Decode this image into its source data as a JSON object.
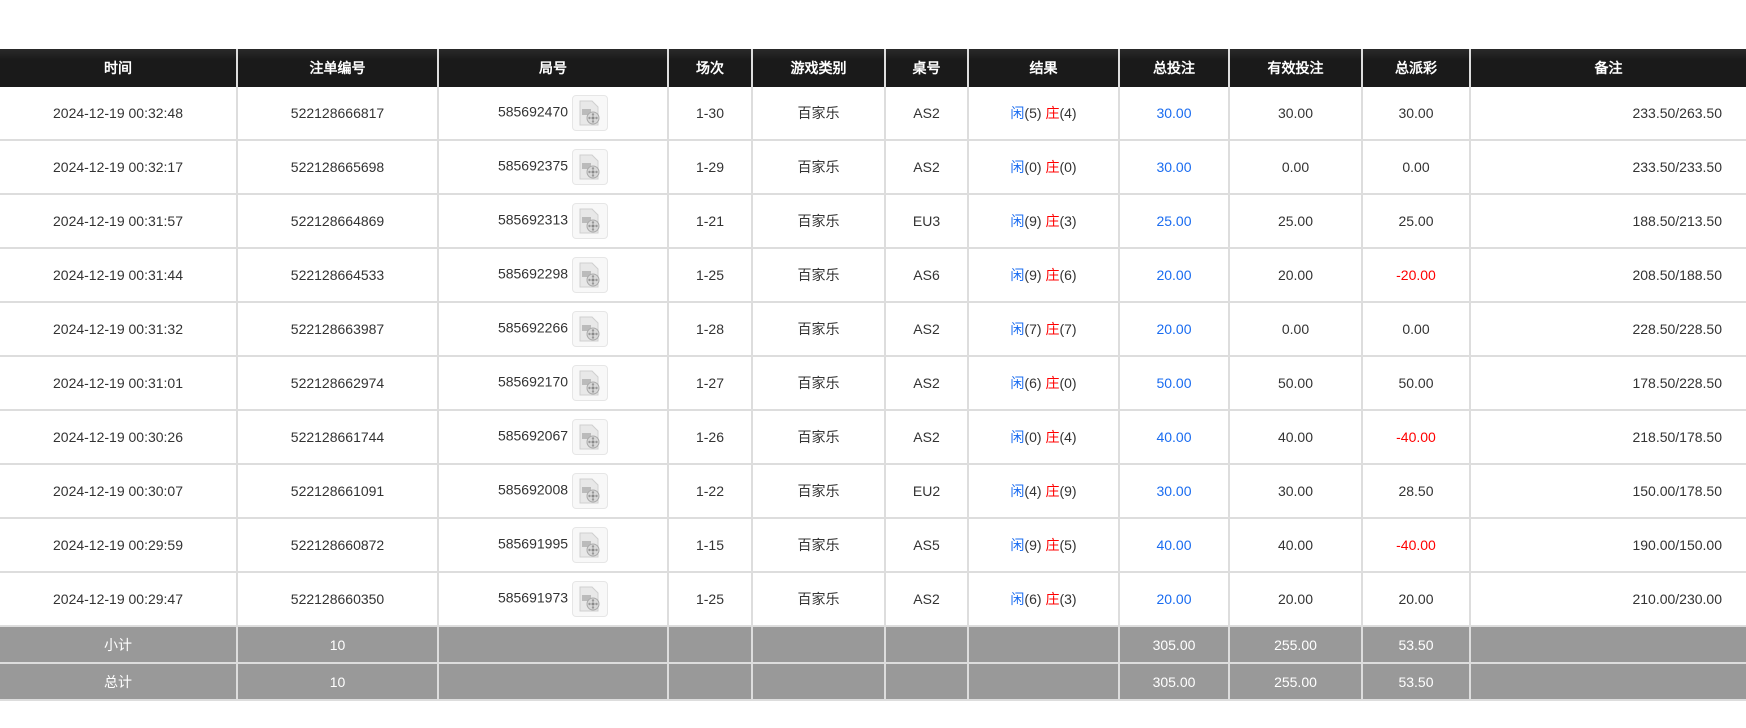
{
  "headers": [
    "时间",
    "注单编号",
    "局号",
    "场次",
    "游戏类别",
    "桌号",
    "结果",
    "总投注",
    "有效投注",
    "总派彩",
    "备注"
  ],
  "rows": [
    {
      "time": "2024-12-19 00:32:48",
      "bet_id": "522128666817",
      "round": "585692470",
      "shoe": "1-30",
      "game": "百家乐",
      "table": "AS2",
      "player_label": "闲",
      "player": "(5)",
      "banker_label": "庄",
      "banker": "(4)",
      "total": "30.00",
      "valid": "30.00",
      "payout": "30.00",
      "payout_negative": false,
      "note": "233.50/263.50"
    },
    {
      "time": "2024-12-19 00:32:17",
      "bet_id": "522128665698",
      "round": "585692375",
      "shoe": "1-29",
      "game": "百家乐",
      "table": "AS2",
      "player_label": "闲",
      "player": "(0)",
      "banker_label": "庄",
      "banker": "(0)",
      "total": "30.00",
      "valid": "0.00",
      "payout": "0.00",
      "payout_negative": false,
      "note": "233.50/233.50"
    },
    {
      "time": "2024-12-19 00:31:57",
      "bet_id": "522128664869",
      "round": "585692313",
      "shoe": "1-21",
      "game": "百家乐",
      "table": "EU3",
      "player_label": "闲",
      "player": "(9)",
      "banker_label": "庄",
      "banker": "(3)",
      "total": "25.00",
      "valid": "25.00",
      "payout": "25.00",
      "payout_negative": false,
      "note": "188.50/213.50"
    },
    {
      "time": "2024-12-19 00:31:44",
      "bet_id": "522128664533",
      "round": "585692298",
      "shoe": "1-25",
      "game": "百家乐",
      "table": "AS6",
      "player_label": "闲",
      "player": "(9)",
      "banker_label": "庄",
      "banker": "(6)",
      "total": "20.00",
      "valid": "20.00",
      "payout": "-20.00",
      "payout_negative": true,
      "note": "208.50/188.50"
    },
    {
      "time": "2024-12-19 00:31:32",
      "bet_id": "522128663987",
      "round": "585692266",
      "shoe": "1-28",
      "game": "百家乐",
      "table": "AS2",
      "player_label": "闲",
      "player": "(7)",
      "banker_label": "庄",
      "banker": "(7)",
      "total": "20.00",
      "valid": "0.00",
      "payout": "0.00",
      "payout_negative": false,
      "note": "228.50/228.50"
    },
    {
      "time": "2024-12-19 00:31:01",
      "bet_id": "522128662974",
      "round": "585692170",
      "shoe": "1-27",
      "game": "百家乐",
      "table": "AS2",
      "player_label": "闲",
      "player": "(6)",
      "banker_label": "庄",
      "banker": "(0)",
      "total": "50.00",
      "valid": "50.00",
      "payout": "50.00",
      "payout_negative": false,
      "note": "178.50/228.50"
    },
    {
      "time": "2024-12-19 00:30:26",
      "bet_id": "522128661744",
      "round": "585692067",
      "shoe": "1-26",
      "game": "百家乐",
      "table": "AS2",
      "player_label": "闲",
      "player": "(0)",
      "banker_label": "庄",
      "banker": "(4)",
      "total": "40.00",
      "valid": "40.00",
      "payout": "-40.00",
      "payout_negative": true,
      "note": "218.50/178.50"
    },
    {
      "time": "2024-12-19 00:30:07",
      "bet_id": "522128661091",
      "round": "585692008",
      "shoe": "1-22",
      "game": "百家乐",
      "table": "EU2",
      "player_label": "闲",
      "player": "(4)",
      "banker_label": "庄",
      "banker": "(9)",
      "total": "30.00",
      "valid": "30.00",
      "payout": "28.50",
      "payout_negative": false,
      "note": "150.00/178.50"
    },
    {
      "time": "2024-12-19 00:29:59",
      "bet_id": "522128660872",
      "round": "585691995",
      "shoe": "1-15",
      "game": "百家乐",
      "table": "AS5",
      "player_label": "闲",
      "player": "(9)",
      "banker_label": "庄",
      "banker": "(5)",
      "total": "40.00",
      "valid": "40.00",
      "payout": "-40.00",
      "payout_negative": true,
      "note": "190.00/150.00"
    },
    {
      "time": "2024-12-19 00:29:47",
      "bet_id": "522128660350",
      "round": "585691973",
      "shoe": "1-25",
      "game": "百家乐",
      "table": "AS2",
      "player_label": "闲",
      "player": "(6)",
      "banker_label": "庄",
      "banker": "(3)",
      "total": "20.00",
      "valid": "20.00",
      "payout": "20.00",
      "payout_negative": false,
      "note": "210.00/230.00"
    }
  ],
  "subtotal": {
    "label": "小计",
    "count": "10",
    "total": "305.00",
    "valid": "255.00",
    "payout": "53.50"
  },
  "grandtotal": {
    "label": "总计",
    "count": "10",
    "total": "305.00",
    "valid": "255.00",
    "payout": "53.50"
  },
  "colors": {
    "player": "#1a6cf0",
    "banker": "#ff0000",
    "header_bg": "#1a1a1a",
    "summary_bg": "#999999"
  },
  "icons": {
    "round": "video-file-icon"
  }
}
